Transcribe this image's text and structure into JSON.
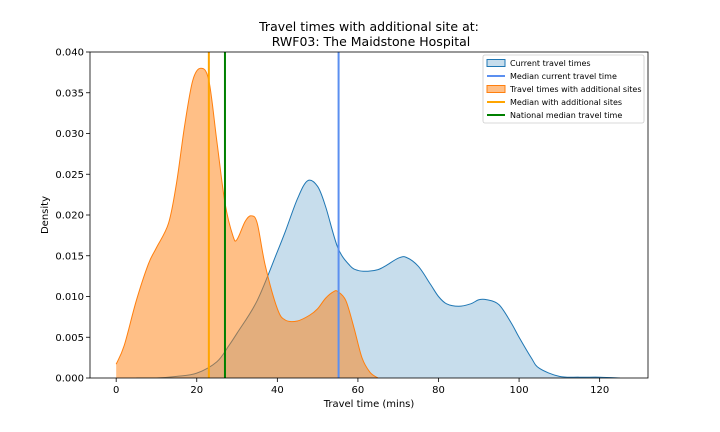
{
  "chart_data": {
    "type": "area",
    "title": "Travel times with additional site at:",
    "subtitle": "RWF03: The Maidstone Hospital",
    "xlabel": "Travel time (mins)",
    "ylabel": "Density",
    "xlim": [
      -6.5,
      132
    ],
    "ylim": [
      0,
      0.04
    ],
    "xticks": [
      0,
      20,
      40,
      60,
      80,
      100,
      120
    ],
    "yticks": [
      0.0,
      0.005,
      0.01,
      0.015,
      0.02,
      0.025,
      0.03,
      0.035,
      0.04
    ],
    "ytick_labels": [
      "0.000",
      "0.005",
      "0.010",
      "0.015",
      "0.020",
      "0.025",
      "0.030",
      "0.035",
      "0.040"
    ],
    "grid": false,
    "legend_position": "top-right",
    "series": [
      {
        "name": "Current travel times",
        "kind": "density",
        "fill_color": "#1f77b4",
        "line_color": "#1f77b4",
        "x": [
          5,
          10,
          15,
          20,
          25,
          28,
          30,
          35,
          40,
          42,
          45,
          47.5,
          50,
          52,
          55,
          58,
          60,
          62.5,
          65,
          67,
          70,
          72,
          75,
          78,
          80,
          82,
          85,
          88,
          90,
          92,
          95,
          98,
          100,
          103,
          105,
          110,
          115,
          120,
          125
        ],
        "y": [
          0.0,
          0.0,
          0.0002,
          0.0006,
          0.002,
          0.004,
          0.0055,
          0.0095,
          0.0155,
          0.018,
          0.022,
          0.0242,
          0.0235,
          0.021,
          0.016,
          0.0138,
          0.0132,
          0.0131,
          0.0133,
          0.0138,
          0.0147,
          0.0148,
          0.0137,
          0.0115,
          0.01,
          0.0091,
          0.0088,
          0.0091,
          0.0096,
          0.0096,
          0.009,
          0.0068,
          0.005,
          0.0025,
          0.0012,
          0.0002,
          0.0001,
          0.0001,
          0.0
        ]
      },
      {
        "name": "Travel times with additional sites",
        "kind": "density",
        "fill_color": "#ff7f0e",
        "line_color": "#ff7f0e",
        "x": [
          0,
          2,
          5,
          8,
          10,
          13,
          15,
          17,
          19,
          21,
          23,
          25,
          27,
          29,
          30,
          32,
          33.5,
          35,
          37,
          40,
          42,
          45,
          48,
          50,
          52,
          54,
          55,
          57,
          59,
          61,
          63,
          65
        ],
        "y": [
          0.0017,
          0.004,
          0.0095,
          0.014,
          0.016,
          0.019,
          0.024,
          0.031,
          0.0365,
          0.038,
          0.0365,
          0.029,
          0.0215,
          0.0174,
          0.017,
          0.0192,
          0.0199,
          0.019,
          0.0138,
          0.0085,
          0.0071,
          0.007,
          0.0077,
          0.0085,
          0.0098,
          0.0106,
          0.0106,
          0.0095,
          0.0062,
          0.0025,
          0.0007,
          0.0
        ]
      },
      {
        "name": "Median current travel time",
        "kind": "vline",
        "x": 55.2,
        "color": "#5b8ff0"
      },
      {
        "name": "Median with additional sites",
        "kind": "vline",
        "x": 23.0,
        "color": "#ffa500"
      },
      {
        "name": "National median travel time",
        "kind": "vline",
        "x": 27.0,
        "color": "#008000"
      }
    ]
  }
}
